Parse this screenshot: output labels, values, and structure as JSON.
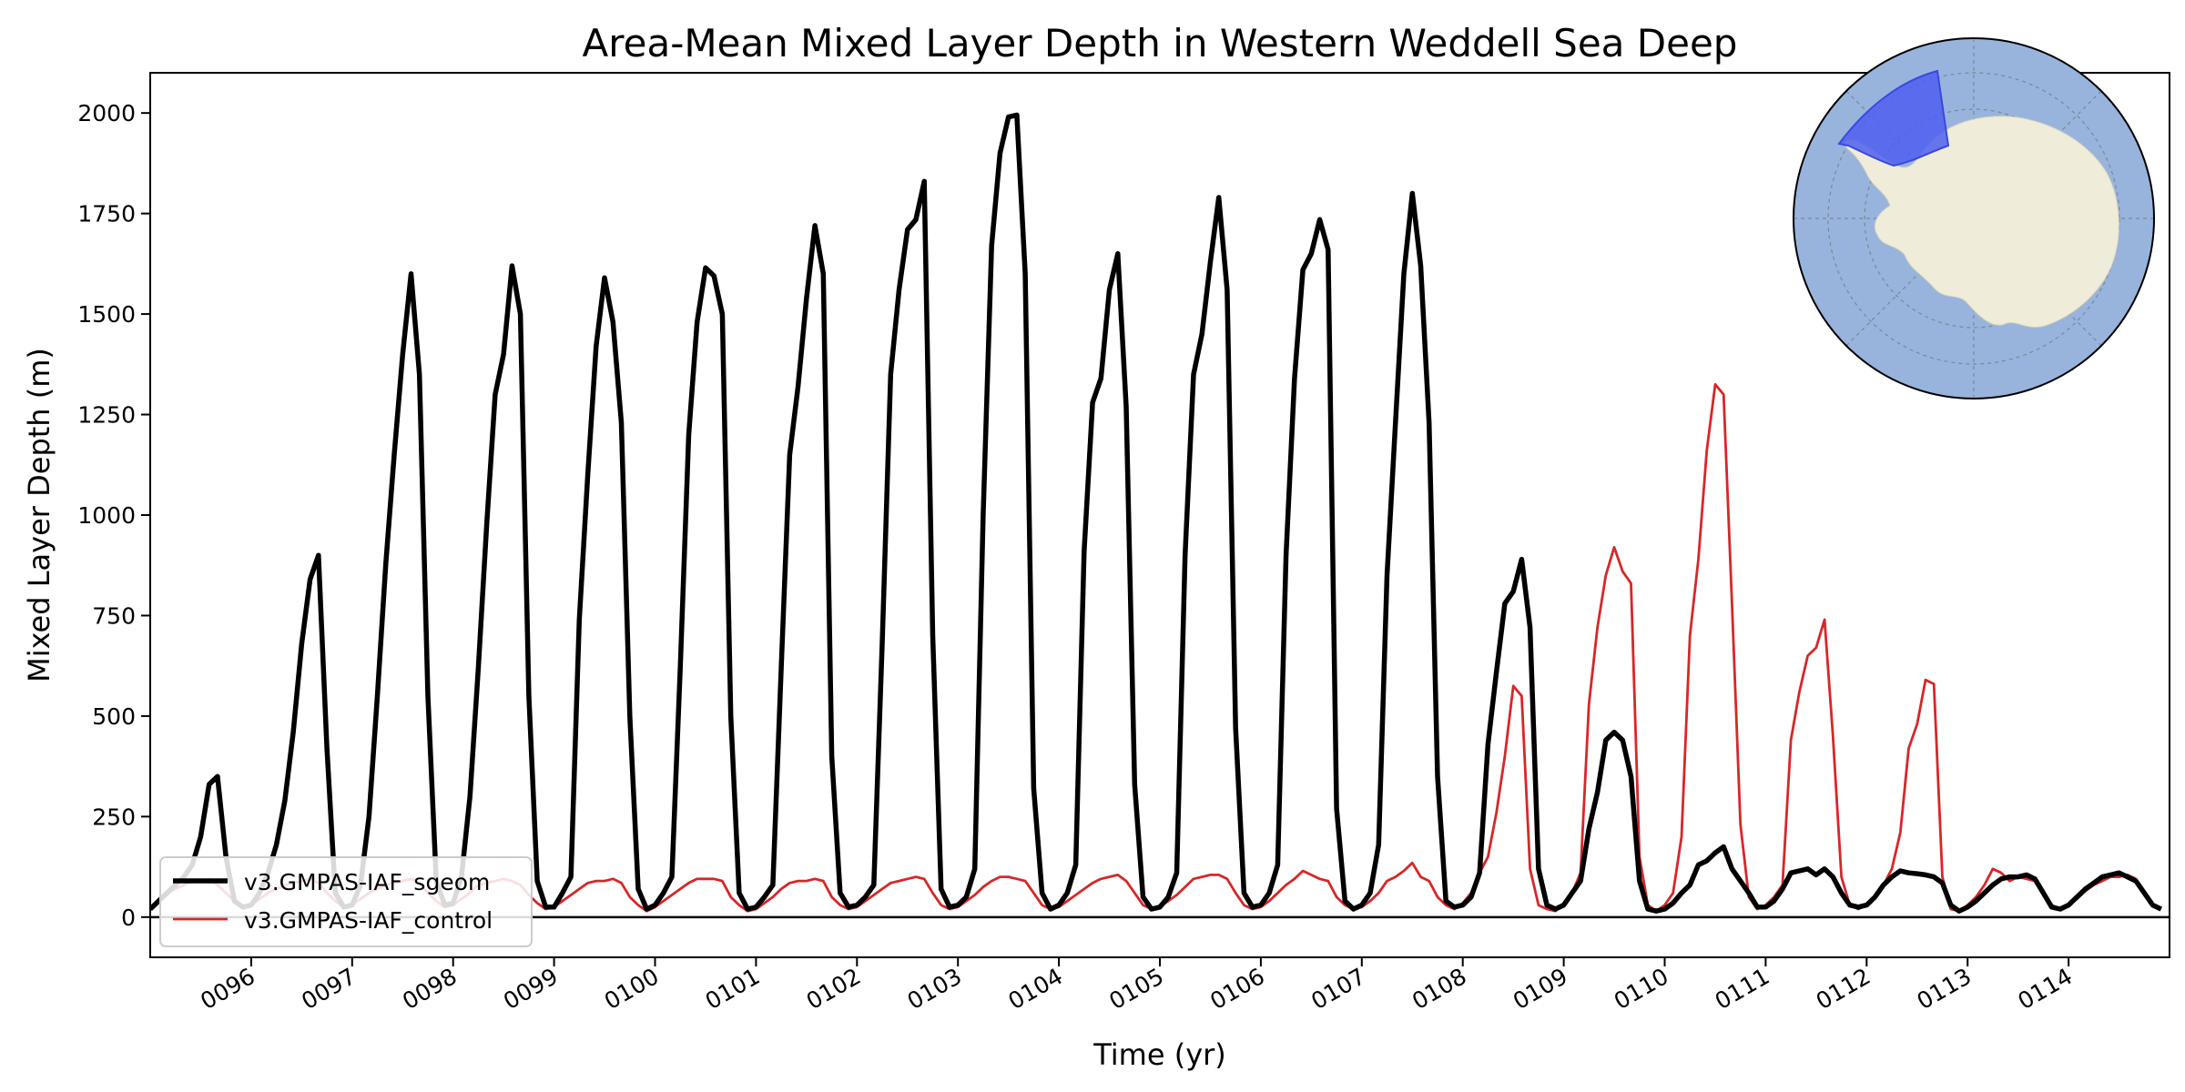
{
  "chart_data": {
    "type": "line",
    "title": "Area-Mean Mixed Layer Depth in Western Weddell Sea Deep",
    "xlabel": "Time (yr)",
    "ylabel": "Mixed Layer Depth (m)",
    "xlim": [
      95.0,
      115.0
    ],
    "ylim": [
      -100,
      2100
    ],
    "yticks": [
      0,
      250,
      500,
      750,
      1000,
      1250,
      1500,
      1750,
      2000
    ],
    "xticks": [
      96,
      97,
      98,
      99,
      100,
      101,
      102,
      103,
      104,
      105,
      106,
      107,
      108,
      109,
      110,
      111,
      112,
      113,
      114
    ],
    "xtick_labels": [
      "0096",
      "0097",
      "0098",
      "0099",
      "0100",
      "0101",
      "0102",
      "0103",
      "0104",
      "0105",
      "0106",
      "0107",
      "0108",
      "0109",
      "0110",
      "0111",
      "0112",
      "0113",
      "0114"
    ],
    "hline": 0,
    "legend": {
      "location": "lower-left",
      "entries": [
        "v3.GMPAS-IAF_sgeom",
        "v3.GMPAS-IAF_control"
      ]
    },
    "inset_map": {
      "projection": "south-polar-stereographic",
      "location": "top-right",
      "ocean_color": "#98b4dd",
      "land_color": "#efedd9",
      "region_color": "#4f5ff0"
    },
    "series_sgeom": {
      "name": "v3.GMPAS-IAF_sgeom",
      "color": "#000000",
      "yearly": [
        [
          20,
          40,
          60,
          80,
          100,
          130,
          200,
          330,
          350,
          150,
          40,
          25
        ],
        [
          30,
          60,
          110,
          180,
          290,
          460,
          680,
          840,
          900,
          420,
          60,
          25
        ],
        [
          30,
          80,
          250,
          550,
          880,
          1150,
          1400,
          1600,
          1350,
          550,
          90,
          30
        ],
        [
          35,
          100,
          300,
          620,
          980,
          1300,
          1400,
          1620,
          1500,
          550,
          90,
          25
        ],
        [
          25,
          60,
          100,
          740,
          1100,
          1420,
          1590,
          1480,
          1230,
          500,
          70,
          20
        ],
        [
          30,
          60,
          100,
          620,
          1200,
          1480,
          1615,
          1595,
          1500,
          500,
          60,
          20
        ],
        [
          25,
          50,
          80,
          620,
          1150,
          1320,
          1540,
          1720,
          1600,
          400,
          60,
          25
        ],
        [
          30,
          50,
          80,
          680,
          1350,
          1560,
          1710,
          1735,
          1830,
          700,
          70,
          25
        ],
        [
          30,
          50,
          120,
          1000,
          1670,
          1900,
          1990,
          1995,
          1600,
          320,
          60,
          20
        ],
        [
          30,
          60,
          130,
          910,
          1280,
          1340,
          1560,
          1650,
          1270,
          330,
          50,
          20
        ],
        [
          25,
          50,
          110,
          900,
          1350,
          1450,
          1630,
          1790,
          1560,
          470,
          60,
          25
        ],
        [
          30,
          60,
          130,
          900,
          1340,
          1610,
          1650,
          1735,
          1660,
          270,
          40,
          20
        ],
        [
          30,
          60,
          180,
          850,
          1230,
          1600,
          1800,
          1620,
          1230,
          350,
          40,
          25
        ],
        [
          30,
          50,
          110,
          430,
          610,
          780,
          810,
          890,
          720,
          120,
          30,
          20
        ],
        [
          30,
          60,
          90,
          220,
          310,
          440,
          460,
          440,
          350,
          90,
          20,
          15
        ],
        [
          20,
          35,
          60,
          80,
          130,
          140,
          160,
          175,
          120,
          90,
          60,
          25
        ],
        [
          25,
          40,
          70,
          110,
          115,
          120,
          105,
          120,
          100,
          60,
          30,
          25
        ],
        [
          30,
          50,
          80,
          100,
          115,
          110,
          108,
          105,
          100,
          85,
          30,
          15
        ],
        [
          25,
          40,
          60,
          80,
          95,
          100,
          100,
          105,
          95,
          60,
          25,
          20
        ],
        [
          30,
          50,
          70,
          85,
          100,
          105,
          110,
          100,
          90,
          60,
          30,
          20
        ]
      ]
    },
    "series_control": {
      "name": "v3.GMPAS-IAF_control",
      "color": "#d62728",
      "yearly": [
        [
          20,
          40,
          60,
          70,
          80,
          90,
          90,
          95,
          80,
          60,
          40,
          25
        ],
        [
          30,
          45,
          60,
          70,
          80,
          85,
          90,
          95,
          85,
          60,
          40,
          25
        ],
        [
          30,
          45,
          60,
          70,
          80,
          85,
          90,
          95,
          85,
          60,
          40,
          25
        ],
        [
          30,
          45,
          60,
          80,
          85,
          90,
          95,
          90,
          80,
          55,
          35,
          20
        ],
        [
          25,
          40,
          55,
          70,
          85,
          90,
          90,
          95,
          85,
          50,
          30,
          15
        ],
        [
          25,
          40,
          55,
          70,
          85,
          95,
          95,
          95,
          90,
          50,
          30,
          15
        ],
        [
          20,
          35,
          50,
          70,
          85,
          90,
          90,
          95,
          90,
          50,
          30,
          20
        ],
        [
          25,
          40,
          55,
          70,
          85,
          90,
          95,
          100,
          95,
          60,
          30,
          20
        ],
        [
          25,
          40,
          55,
          75,
          90,
          100,
          100,
          95,
          90,
          60,
          30,
          20
        ],
        [
          25,
          40,
          55,
          70,
          85,
          95,
          100,
          105,
          90,
          60,
          30,
          20
        ],
        [
          25,
          40,
          55,
          75,
          95,
          100,
          105,
          105,
          95,
          60,
          30,
          20
        ],
        [
          25,
          40,
          60,
          80,
          95,
          115,
          105,
          95,
          90,
          50,
          30,
          20
        ],
        [
          25,
          40,
          60,
          90,
          100,
          115,
          135,
          100,
          90,
          50,
          30,
          20
        ],
        [
          35,
          60,
          110,
          150,
          260,
          400,
          575,
          550,
          120,
          30,
          20,
          15
        ],
        [
          35,
          60,
          110,
          530,
          720,
          850,
          920,
          860,
          830,
          150,
          30,
          15
        ],
        [
          30,
          60,
          200,
          700,
          890,
          1160,
          1325,
          1300,
          780,
          230,
          50,
          20
        ],
        [
          30,
          50,
          80,
          440,
          560,
          650,
          670,
          740,
          450,
          100,
          30,
          20
        ],
        [
          30,
          50,
          80,
          120,
          210,
          420,
          480,
          590,
          580,
          100,
          20,
          15
        ],
        [
          30,
          50,
          80,
          120,
          110,
          90,
          100,
          95,
          90,
          60,
          30,
          20
        ],
        [
          30,
          45,
          65,
          80,
          90,
          100,
          100,
          105,
          95,
          60,
          30,
          20
        ]
      ]
    }
  }
}
